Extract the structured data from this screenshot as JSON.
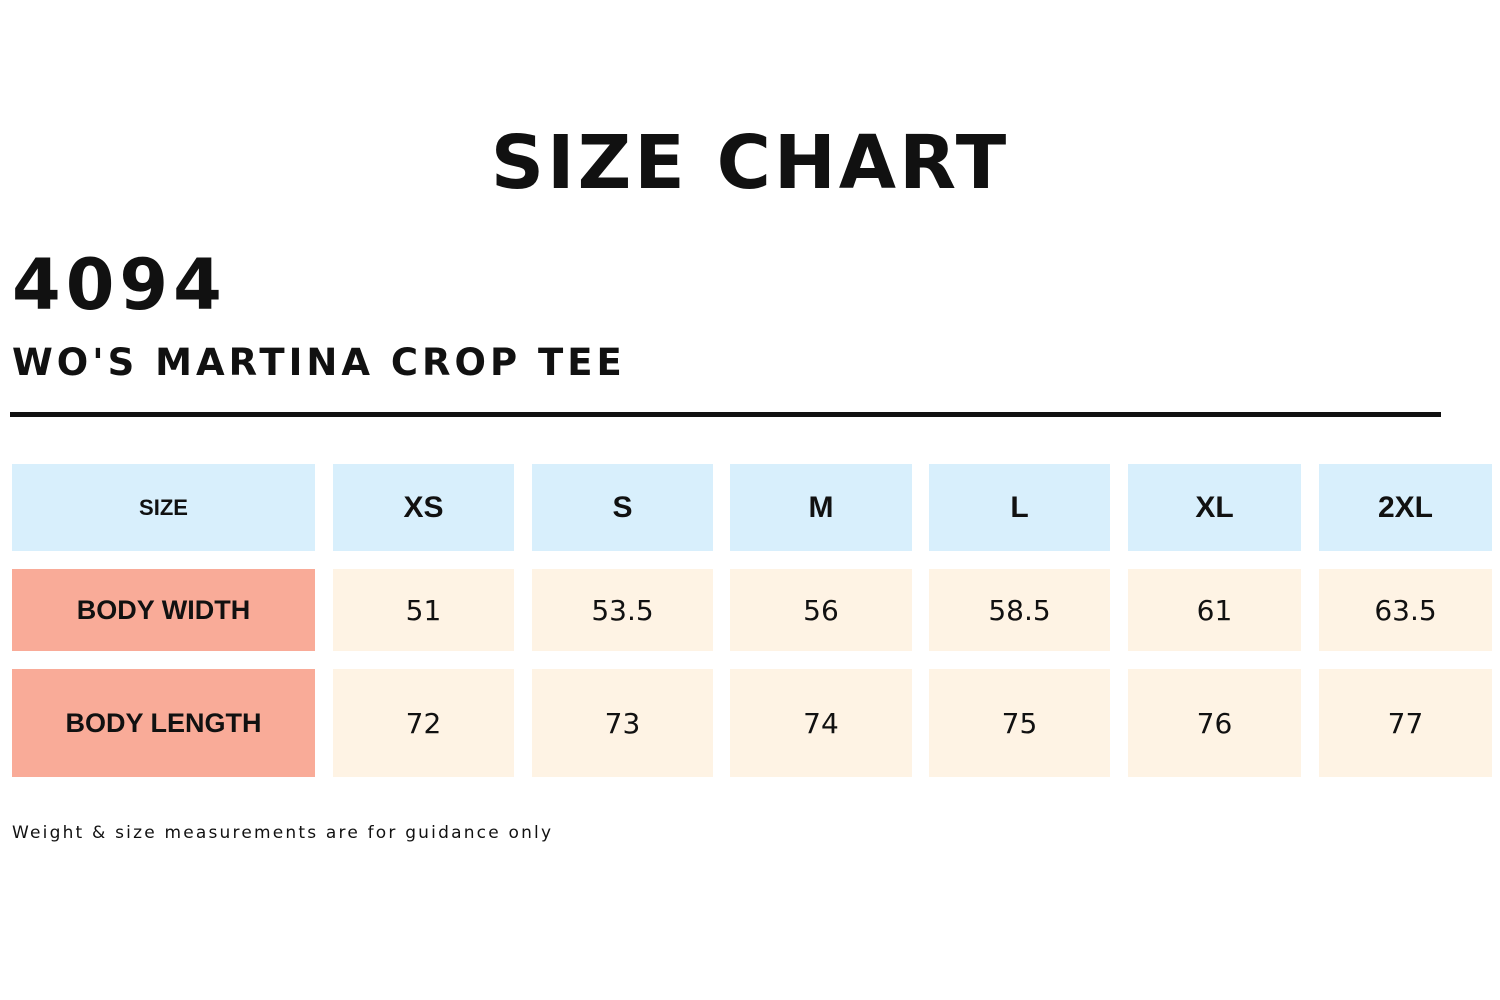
{
  "title": "SIZE CHART",
  "product_code": "4094",
  "product_name": "WO'S MARTINA CROP TEE",
  "table": {
    "header_label": "SIZE",
    "sizes": [
      "XS",
      "S",
      "M",
      "L",
      "XL",
      "2XL"
    ],
    "rows": [
      {
        "label": "BODY WIDTH",
        "values": [
          "51",
          "53.5",
          "56",
          "58.5",
          "61",
          "63.5"
        ]
      },
      {
        "label": "BODY LENGTH",
        "values": [
          "72",
          "73",
          "74",
          "75",
          "76",
          "77"
        ]
      }
    ]
  },
  "footnote": "Weight & size measurements are for guidance only",
  "colors": {
    "header_fill": "#d8effc",
    "row_label_fill": "#f9ab98",
    "value_fill": "#fef3e4",
    "text": "#111111"
  }
}
